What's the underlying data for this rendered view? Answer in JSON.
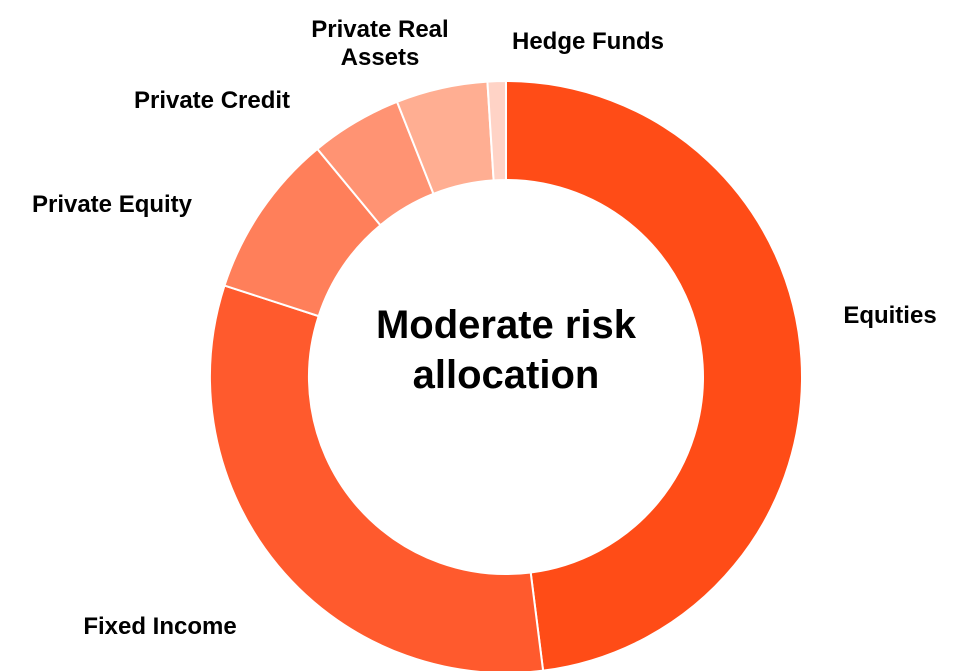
{
  "chart_data": {
    "type": "donut",
    "title": "Moderate risk allocation",
    "categories": [
      "Equities",
      "Fixed Income",
      "Private Equity",
      "Private Credit",
      "Private Real Assets",
      "Hedge Funds"
    ],
    "values": [
      48,
      32,
      9,
      5,
      5,
      1
    ],
    "colors": [
      "#ff4c17",
      "#ff5a2d",
      "#ff7f5a",
      "#ff9373",
      "#ffae92",
      "#ffd3c6"
    ]
  }
}
